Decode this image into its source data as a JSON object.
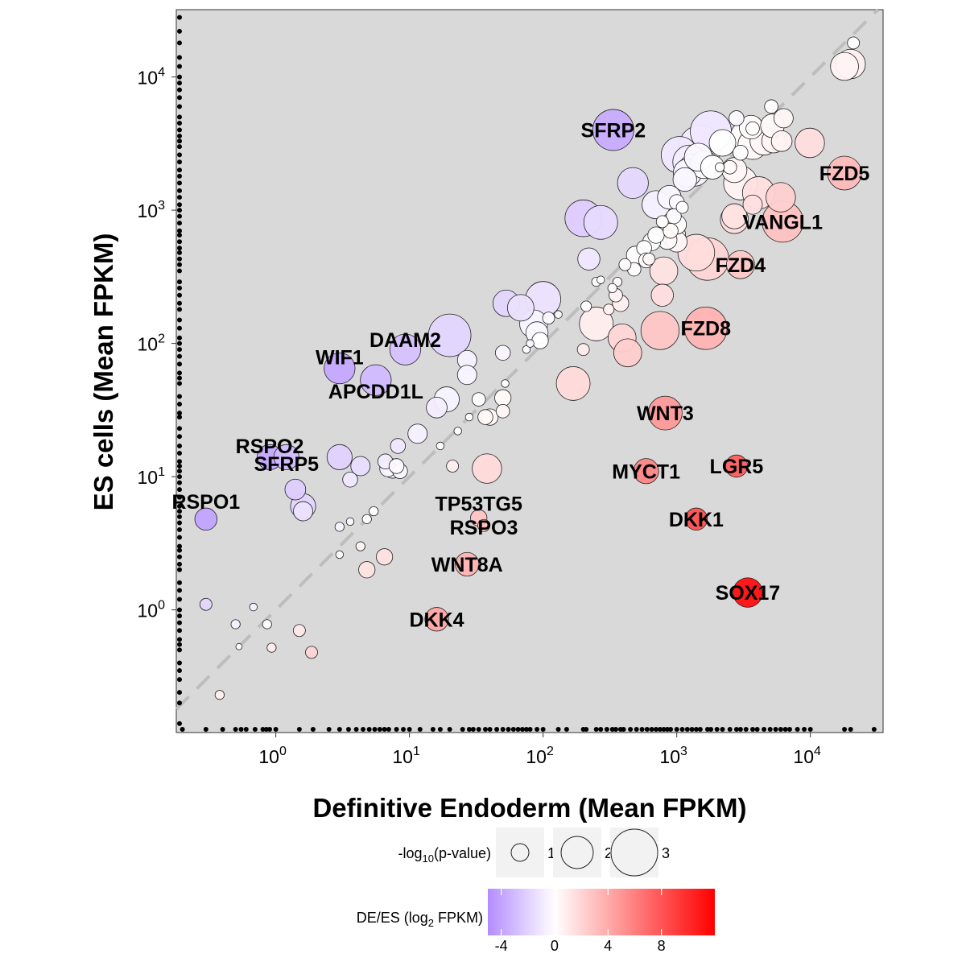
{
  "chart_data": {
    "type": "scatter",
    "x_scale": "log10",
    "y_scale": "log10",
    "xlabel": "Definitive Endoderm (Mean FPKM)",
    "ylabel": "ES cells (Mean FPKM)",
    "xlim": [
      0.18,
      35000
    ],
    "ylim": [
      0.12,
      32000
    ],
    "x_ticks": [
      {
        "value": 1,
        "base": "10",
        "exp": "0"
      },
      {
        "value": 10,
        "base": "10",
        "exp": "1"
      },
      {
        "value": 100,
        "base": "10",
        "exp": "2"
      },
      {
        "value": 1000,
        "base": "10",
        "exp": "3"
      },
      {
        "value": 10000,
        "base": "10",
        "exp": "4"
      }
    ],
    "y_ticks": [
      {
        "value": 1,
        "base": "10",
        "exp": "0"
      },
      {
        "value": 10,
        "base": "10",
        "exp": "1"
      },
      {
        "value": 100,
        "base": "10",
        "exp": "2"
      },
      {
        "value": 1000,
        "base": "10",
        "exp": "3"
      },
      {
        "value": 10000,
        "base": "10",
        "exp": "4"
      }
    ],
    "reference_line": "y = x",
    "panel_background": "#d9d9d9",
    "colors": {
      "low": "#b38cff",
      "mid": "#ffffff",
      "high": "#ff0000"
    },
    "points": [
      {
        "x": 18000,
        "y": 12000,
        "p": 1.6,
        "lfc": 0.6
      },
      {
        "x": 20000,
        "y": 12500,
        "p": 1.7,
        "lfc": 0.7
      },
      {
        "x": 21000,
        "y": 18000,
        "p": 0.5,
        "lfc": 0.1
      },
      {
        "x": 335,
        "y": 4000,
        "p": 2.5,
        "lfc": -3.6,
        "label": "SFRP2"
      },
      {
        "x": 1800,
        "y": 3900,
        "p": 2.5,
        "lfc": -1.0
      },
      {
        "x": 1500,
        "y": 3000,
        "p": 2.6,
        "lfc": -0.8
      },
      {
        "x": 1050,
        "y": 2600,
        "p": 2.2,
        "lfc": -1.0
      },
      {
        "x": 1250,
        "y": 2300,
        "p": 2.0,
        "lfc": -0.8
      },
      {
        "x": 1350,
        "y": 2000,
        "p": 1.9,
        "lfc": -0.6
      },
      {
        "x": 1200,
        "y": 1900,
        "p": 1.6,
        "lfc": -0.4
      },
      {
        "x": 1600,
        "y": 2200,
        "p": 1.6,
        "lfc": -0.2
      },
      {
        "x": 1450,
        "y": 2500,
        "p": 1.6,
        "lfc": -0.3
      },
      {
        "x": 1150,
        "y": 1700,
        "p": 1.3,
        "lfc": -0.4
      },
      {
        "x": 1850,
        "y": 2100,
        "p": 1.3,
        "lfc": 0.0
      },
      {
        "x": 2200,
        "y": 3200,
        "p": 1.5,
        "lfc": 0.0
      },
      {
        "x": 3300,
        "y": 3600,
        "p": 1.8,
        "lfc": 0.1
      },
      {
        "x": 3600,
        "y": 4200,
        "p": 1.3,
        "lfc": 0.2
      },
      {
        "x": 3700,
        "y": 3100,
        "p": 1.7,
        "lfc": 0.3
      },
      {
        "x": 4500,
        "y": 3300,
        "p": 1.6,
        "lfc": 0.4
      },
      {
        "x": 5300,
        "y": 3300,
        "p": 1.3,
        "lfc": 0.5
      },
      {
        "x": 5200,
        "y": 4300,
        "p": 1.3,
        "lfc": 0.3
      },
      {
        "x": 6100,
        "y": 3300,
        "p": 1.1,
        "lfc": 0.6
      },
      {
        "x": 6300,
        "y": 4900,
        "p": 1.0,
        "lfc": 0.4
      },
      {
        "x": 5100,
        "y": 6000,
        "p": 0.6,
        "lfc": 0.1
      },
      {
        "x": 3700,
        "y": 4100,
        "p": 0.6,
        "lfc": 0.1
      },
      {
        "x": 2800,
        "y": 4900,
        "p": 0.7,
        "lfc": -0.2
      },
      {
        "x": 2700,
        "y": 2000,
        "p": 1.4,
        "lfc": 0.4
      },
      {
        "x": 2500,
        "y": 2100,
        "p": 0.6,
        "lfc": 0.2
      },
      {
        "x": 2100,
        "y": 2100,
        "p": 0.3,
        "lfc": 0.0
      },
      {
        "x": 3000,
        "y": 1600,
        "p": 2.0,
        "lfc": 0.5
      },
      {
        "x": 3000,
        "y": 2700,
        "p": 0.7,
        "lfc": 0.1
      },
      {
        "x": 9900,
        "y": 3200,
        "p": 1.7,
        "lfc": 1.6
      },
      {
        "x": 18000,
        "y": 1900,
        "p": 2.0,
        "lfc": 3.2,
        "label": "FZD5"
      },
      {
        "x": 4100,
        "y": 1350,
        "p": 1.9,
        "lfc": 1.5
      },
      {
        "x": 6000,
        "y": 1250,
        "p": 1.7,
        "lfc": 2.2
      },
      {
        "x": 6200,
        "y": 820,
        "p": 2.5,
        "lfc": 2.9,
        "label": "VANGL1"
      },
      {
        "x": 2700,
        "y": 850,
        "p": 1.6,
        "lfc": 1.6
      },
      {
        "x": 2700,
        "y": 900,
        "p": 1.4,
        "lfc": 1.3
      },
      {
        "x": 3700,
        "y": 1100,
        "p": 1.0,
        "lfc": 1.5
      },
      {
        "x": 3000,
        "y": 390,
        "p": 1.6,
        "lfc": 2.6,
        "label": "FZD4"
      },
      {
        "x": 1700,
        "y": 430,
        "p": 2.6,
        "lfc": 2.0
      },
      {
        "x": 1400,
        "y": 480,
        "p": 2.2,
        "lfc": 1.6
      },
      {
        "x": 800,
        "y": 350,
        "p": 1.6,
        "lfc": 1.3
      },
      {
        "x": 780,
        "y": 230,
        "p": 1.2,
        "lfc": 1.6
      },
      {
        "x": 1650,
        "y": 130,
        "p": 2.6,
        "lfc": 3.6,
        "label": "FZD8"
      },
      {
        "x": 750,
        "y": 125,
        "p": 2.3,
        "lfc": 2.7
      },
      {
        "x": 390,
        "y": 110,
        "p": 1.6,
        "lfc": 1.9
      },
      {
        "x": 430,
        "y": 85,
        "p": 1.6,
        "lfc": 2.3
      },
      {
        "x": 250,
        "y": 140,
        "p": 2.0,
        "lfc": 0.8
      },
      {
        "x": 168,
        "y": 50,
        "p": 2.0,
        "lfc": 1.7
      },
      {
        "x": 820,
        "y": 30,
        "p": 2.0,
        "lfc": 4.8,
        "label": "WNT3"
      },
      {
        "x": 590,
        "y": 11,
        "p": 1.4,
        "lfc": 5.7,
        "label": "MYCT1"
      },
      {
        "x": 2800,
        "y": 12,
        "p": 1.2,
        "lfc": 7.6,
        "label": "LGR5"
      },
      {
        "x": 1400,
        "y": 4.8,
        "p": 1.2,
        "lfc": 8.2,
        "label": "DKK1"
      },
      {
        "x": 3400,
        "y": 1.35,
        "p": 1.7,
        "lfc": 11.3,
        "label": "SOX17"
      },
      {
        "x": 38,
        "y": 11.5,
        "p": 1.7,
        "lfc": 1.7
      },
      {
        "x": 33,
        "y": 4.9,
        "p": 0.8,
        "lfc": 2.8,
        "label": "TP53TG5"
      },
      {
        "x": 36,
        "y": 4.3,
        "p": 0.5,
        "lfc": 3.0,
        "label": "RSPO3"
      },
      {
        "x": 27,
        "y": 2.2,
        "p": 1.3,
        "lfc": 3.6,
        "label": "WNT8A"
      },
      {
        "x": 16,
        "y": 0.85,
        "p": 1.3,
        "lfc": 4.2,
        "label": "DKK4"
      },
      {
        "x": 6.5,
        "y": 2.5,
        "p": 0.8,
        "lfc": 1.4
      },
      {
        "x": 4.8,
        "y": 2.0,
        "p": 0.8,
        "lfc": 1.3
      },
      {
        "x": 1.85,
        "y": 0.48,
        "p": 0.5,
        "lfc": 2.0
      },
      {
        "x": 0.3,
        "y": 4.8,
        "p": 1.2,
        "lfc": -4.0,
        "label": "RSPO1"
      },
      {
        "x": 0.9,
        "y": 14,
        "p": 1.4,
        "lfc": -3.8,
        "label": "RSPO2"
      },
      {
        "x": 1.2,
        "y": 14,
        "p": 1.4,
        "lfc": -3.0,
        "label": "SFRP5"
      },
      {
        "x": 1.6,
        "y": 6,
        "p": 1.4,
        "lfc": -1.8
      },
      {
        "x": 1.6,
        "y": 5.5,
        "p": 1.0,
        "lfc": -1.3
      },
      {
        "x": 1.4,
        "y": 8,
        "p": 1.1,
        "lfc": -2.2
      },
      {
        "x": 3.0,
        "y": 14,
        "p": 1.4,
        "lfc": -2.0
      },
      {
        "x": 4.3,
        "y": 12,
        "p": 1.0,
        "lfc": -1.5
      },
      {
        "x": 3.6,
        "y": 9.5,
        "p": 0.7,
        "lfc": -1.0
      },
      {
        "x": 6.6,
        "y": 13,
        "p": 0.7,
        "lfc": -0.8
      },
      {
        "x": 6.9,
        "y": 11.5,
        "p": 0.8,
        "lfc": -0.5
      },
      {
        "x": 7.5,
        "y": 11.5,
        "p": 1.0,
        "lfc": -0.5
      },
      {
        "x": 8.5,
        "y": 11,
        "p": 0.7,
        "lfc": -0.3
      },
      {
        "x": 8.0,
        "y": 12,
        "p": 0.7,
        "lfc": -0.2
      },
      {
        "x": 8.2,
        "y": 17,
        "p": 0.7,
        "lfc": -1.0
      },
      {
        "x": 11.5,
        "y": 21,
        "p": 1.0,
        "lfc": -0.6
      },
      {
        "x": 16,
        "y": 33,
        "p": 1.1,
        "lfc": -0.8
      },
      {
        "x": 19,
        "y": 38,
        "p": 1.4,
        "lfc": -0.5
      },
      {
        "x": 3.0,
        "y": 65,
        "p": 1.8,
        "lfc": -3.8,
        "label": "WIF1"
      },
      {
        "x": 9.3,
        "y": 90,
        "p": 1.8,
        "lfc": -2.7,
        "label": "DAAM2"
      },
      {
        "x": 5.6,
        "y": 53,
        "p": 1.8,
        "lfc": -3.0,
        "label": "APCDD1L"
      },
      {
        "x": 20,
        "y": 115,
        "p": 2.6,
        "lfc": -1.8
      },
      {
        "x": 27,
        "y": 75,
        "p": 1.0,
        "lfc": -0.6
      },
      {
        "x": 27,
        "y": 58,
        "p": 1.0,
        "lfc": -0.4
      },
      {
        "x": 33,
        "y": 38,
        "p": 0.6,
        "lfc": 0.0
      },
      {
        "x": 37,
        "y": 28,
        "p": 0.7,
        "lfc": 0.3
      },
      {
        "x": 40,
        "y": 28,
        "p": 0.8,
        "lfc": 0.3
      },
      {
        "x": 50,
        "y": 39,
        "p": 0.8,
        "lfc": 0.2
      },
      {
        "x": 50,
        "y": 31,
        "p": 0.6,
        "lfc": 0.4
      },
      {
        "x": 50,
        "y": 85,
        "p": 0.7,
        "lfc": -0.4
      },
      {
        "x": 53,
        "y": 200,
        "p": 1.5,
        "lfc": -1.8
      },
      {
        "x": 68,
        "y": 185,
        "p": 1.5,
        "lfc": -1.3
      },
      {
        "x": 85,
        "y": 140,
        "p": 1.6,
        "lfc": -0.4
      },
      {
        "x": 90,
        "y": 120,
        "p": 1.2,
        "lfc": -0.3
      },
      {
        "x": 100,
        "y": 215,
        "p": 2.1,
        "lfc": -1.2
      },
      {
        "x": 95,
        "y": 105,
        "p": 0.8,
        "lfc": 0.0
      },
      {
        "x": 110,
        "y": 155,
        "p": 0.5,
        "lfc": -0.2
      },
      {
        "x": 200,
        "y": 870,
        "p": 2.2,
        "lfc": -2.2
      },
      {
        "x": 270,
        "y": 810,
        "p": 2.0,
        "lfc": -1.6
      },
      {
        "x": 220,
        "y": 430,
        "p": 1.2,
        "lfc": -1.0
      },
      {
        "x": 470,
        "y": 1600,
        "p": 1.8,
        "lfc": -1.7
      },
      {
        "x": 700,
        "y": 1100,
        "p": 1.6,
        "lfc": -0.6
      },
      {
        "x": 880,
        "y": 1250,
        "p": 1.3,
        "lfc": -0.4
      },
      {
        "x": 1000,
        "y": 1150,
        "p": 0.7,
        "lfc": -0.2
      },
      {
        "x": 950,
        "y": 900,
        "p": 0.7,
        "lfc": -0.1
      },
      {
        "x": 1100,
        "y": 1050,
        "p": 0.5,
        "lfc": 0.0
      },
      {
        "x": 1000,
        "y": 780,
        "p": 1.0,
        "lfc": 0.1
      },
      {
        "x": 780,
        "y": 820,
        "p": 0.5,
        "lfc": 0.0
      },
      {
        "x": 900,
        "y": 700,
        "p": 0.7,
        "lfc": 0.2
      },
      {
        "x": 850,
        "y": 600,
        "p": 1.0,
        "lfc": 0.3
      },
      {
        "x": 950,
        "y": 650,
        "p": 1.3,
        "lfc": 0.3
      },
      {
        "x": 1000,
        "y": 580,
        "p": 1.1,
        "lfc": 0.4
      },
      {
        "x": 700,
        "y": 650,
        "p": 0.8,
        "lfc": 0.0
      },
      {
        "x": 650,
        "y": 580,
        "p": 0.9,
        "lfc": -0.1
      },
      {
        "x": 570,
        "y": 520,
        "p": 0.7,
        "lfc": 0.0
      },
      {
        "x": 590,
        "y": 420,
        "p": 0.7,
        "lfc": 0.1
      },
      {
        "x": 490,
        "y": 460,
        "p": 0.9,
        "lfc": 0.0
      },
      {
        "x": 480,
        "y": 360,
        "p": 0.6,
        "lfc": 0.1
      },
      {
        "x": 410,
        "y": 390,
        "p": 0.5,
        "lfc": 0.1
      },
      {
        "x": 360,
        "y": 290,
        "p": 0.3,
        "lfc": 0.2
      },
      {
        "x": 330,
        "y": 260,
        "p": 0.3,
        "lfc": 0.1
      },
      {
        "x": 350,
        "y": 230,
        "p": 0.6,
        "lfc": 0.5
      },
      {
        "x": 380,
        "y": 200,
        "p": 0.8,
        "lfc": 0.7
      },
      {
        "x": 310,
        "y": 180,
        "p": 0.4,
        "lfc": 0.6
      },
      {
        "x": 620,
        "y": 430,
        "p": 0.5,
        "lfc": 0.4
      },
      {
        "x": 250,
        "y": 290,
        "p": 0.3,
        "lfc": -0.1
      },
      {
        "x": 270,
        "y": 300,
        "p": 0.2,
        "lfc": 0.0
      },
      {
        "x": 130,
        "y": 165,
        "p": 0.2,
        "lfc": -0.3
      },
      {
        "x": 210,
        "y": 190,
        "p": 0.4,
        "lfc": 0.1
      },
      {
        "x": 200,
        "y": 90,
        "p": 0.5,
        "lfc": 0.9
      },
      {
        "x": 75,
        "y": 90,
        "p": 0.2,
        "lfc": -0.1
      },
      {
        "x": 80,
        "y": 100,
        "p": 0.2,
        "lfc": -0.2
      },
      {
        "x": 52,
        "y": 50,
        "p": 0.2,
        "lfc": 0.0
      },
      {
        "x": 23,
        "y": 22,
        "p": 0.2,
        "lfc": 0.0
      },
      {
        "x": 28,
        "y": 28,
        "p": 0.2,
        "lfc": 0.0
      },
      {
        "x": 17,
        "y": 17,
        "p": 0.2,
        "lfc": 0.0
      },
      {
        "x": 21,
        "y": 12,
        "p": 0.5,
        "lfc": 0.8
      },
      {
        "x": 5.4,
        "y": 5.5,
        "p": 0.3,
        "lfc": 0.0
      },
      {
        "x": 4.8,
        "y": 4.8,
        "p": 0.3,
        "lfc": 0.0
      },
      {
        "x": 3.0,
        "y": 4.2,
        "p": 0.3,
        "lfc": -0.5
      },
      {
        "x": 3.6,
        "y": 4.6,
        "p": 0.2,
        "lfc": -0.3
      },
      {
        "x": 4.3,
        "y": 3.0,
        "p": 0.3,
        "lfc": 0.5
      },
      {
        "x": 3.0,
        "y": 2.6,
        "p": 0.2,
        "lfc": 0.2
      },
      {
        "x": 0.3,
        "y": 1.1,
        "p": 0.5,
        "lfc": -1.8
      },
      {
        "x": 0.68,
        "y": 1.05,
        "p": 0.2,
        "lfc": -0.6
      },
      {
        "x": 0.5,
        "y": 0.78,
        "p": 0.3,
        "lfc": -0.6
      },
      {
        "x": 0.86,
        "y": 0.78,
        "p": 0.3,
        "lfc": 0.1
      },
      {
        "x": 1.5,
        "y": 0.7,
        "p": 0.5,
        "lfc": 1.1
      },
      {
        "x": 0.93,
        "y": 0.52,
        "p": 0.3,
        "lfc": 0.8
      },
      {
        "x": 0.53,
        "y": 0.53,
        "p": 0.1,
        "lfc": 0.0
      },
      {
        "x": 0.38,
        "y": 0.23,
        "p": 0.3,
        "lfc": 0.7
      }
    ],
    "rug_x": [
      0.2,
      0.3,
      0.4,
      0.5,
      0.55,
      0.6,
      0.7,
      0.8,
      0.85,
      0.9,
      1.0,
      1.5,
      1.9,
      2.5,
      3,
      3.5,
      4,
      4.5,
      5,
      5.5,
      6,
      6.5,
      7,
      8,
      9,
      10,
      12,
      15,
      17,
      20,
      25,
      28,
      30,
      33,
      37,
      40,
      45,
      50,
      55,
      60,
      65,
      70,
      75,
      80,
      90,
      100,
      130,
      150,
      200,
      210,
      250,
      270,
      300,
      330,
      350,
      380,
      400,
      450,
      500,
      550,
      600,
      650,
      700,
      750,
      800,
      850,
      900,
      1000,
      1100,
      1200,
      1300,
      1400,
      1500,
      1700,
      1800,
      2000,
      2200,
      2500,
      2800,
      3000,
      3300,
      3700,
      4000,
      4500,
      5000,
      5500,
      6000,
      6500,
      7000,
      8000,
      9000,
      10000,
      18000,
      20000,
      30000
    ],
    "rug_y": [
      0.14,
      0.2,
      0.24,
      0.3,
      0.35,
      0.4,
      0.5,
      0.55,
      0.6,
      0.7,
      0.8,
      0.9,
      1.0,
      1.2,
      1.4,
      1.6,
      2.0,
      2.2,
      2.5,
      2.8,
      3,
      3.5,
      4,
      4.5,
      5,
      5.5,
      6,
      7,
      8,
      9,
      10,
      11,
      12,
      13,
      15,
      17,
      20,
      23,
      28,
      30,
      35,
      40,
      50,
      55,
      60,
      70,
      80,
      90,
      100,
      110,
      130,
      150,
      180,
      200,
      230,
      260,
      290,
      350,
      390,
      430,
      480,
      520,
      580,
      650,
      700,
      800,
      900,
      1000,
      1100,
      1250,
      1400,
      1600,
      1800,
      2000,
      2300,
      2600,
      3000,
      3300,
      3600,
      4000,
      4500,
      5000,
      6000,
      7000,
      8000,
      9000,
      10000,
      12000,
      14000,
      18000,
      22000,
      28000
    ],
    "legend": {
      "size_title_prefix": "-log",
      "size_title_sub": "10",
      "size_title_suffix": "(p-value)",
      "size_items": [
        {
          "label": "1",
          "p": 1
        },
        {
          "label": "2",
          "p": 2
        },
        {
          "label": "3",
          "p": 3
        }
      ],
      "color_title_prefix": "DE/ES (log",
      "color_title_sub": "2",
      "color_title_suffix": " FPKM)",
      "color_ticks": [
        {
          "label": "-4",
          "value": -4
        },
        {
          "label": "0",
          "value": 0
        },
        {
          "label": "4",
          "value": 4
        },
        {
          "label": "8",
          "value": 8
        }
      ],
      "color_range": [
        -5,
        12
      ]
    }
  }
}
